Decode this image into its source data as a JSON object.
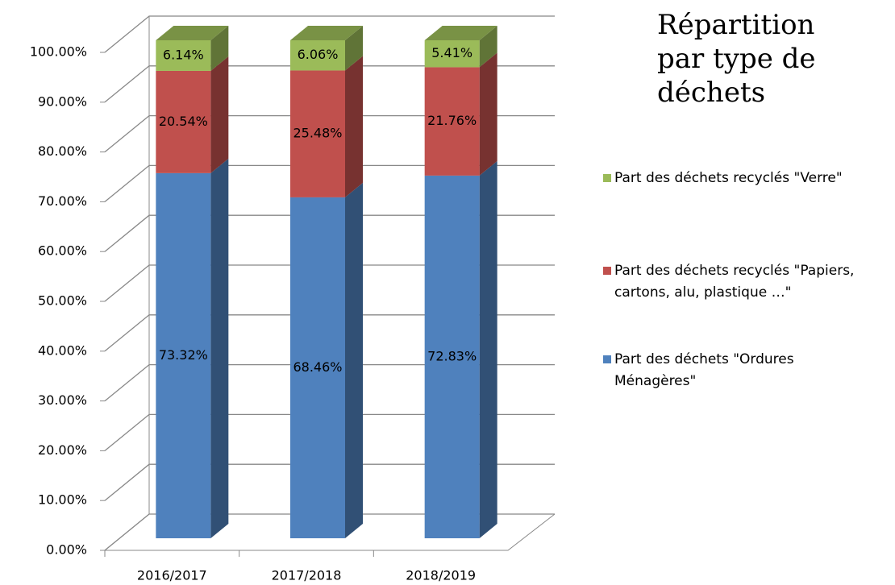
{
  "chart_data": {
    "type": "bar3d_stacked",
    "title": "Répartition par type de déchets",
    "categories": [
      "2016/2017",
      "2017/2018",
      "2018/2019"
    ],
    "series": [
      {
        "name": "Part des déchets \"Ordures Ménagères\"",
        "color": "#4f81bd",
        "values": [
          73.32,
          68.46,
          72.83
        ],
        "value_labels": [
          "73.32%",
          "68.46%",
          "72.83%"
        ]
      },
      {
        "name": "Part des déchets recyclés \"Papiers, cartons, alu, plastique …\"",
        "color": "#c0504d",
        "values": [
          20.54,
          25.48,
          21.76
        ],
        "value_labels": [
          "20.54%",
          "25.48%",
          "21.76%"
        ]
      },
      {
        "name": "Part des déchets recyclés \"Verre\"",
        "color": "#9bbb59",
        "values": [
          6.14,
          6.06,
          5.41
        ],
        "value_labels": [
          "6.14%",
          "6.06%",
          "5.41%"
        ]
      }
    ],
    "ylim": [
      0,
      100
    ],
    "yticks": [
      {
        "value": 0,
        "label": "0.00%"
      },
      {
        "value": 10,
        "label": "10.00%"
      },
      {
        "value": 20,
        "label": "20.00%"
      },
      {
        "value": 30,
        "label": "30.00%"
      },
      {
        "value": 40,
        "label": "40.00%"
      },
      {
        "value": 50,
        "label": "50.00%"
      },
      {
        "value": 60,
        "label": "60.00%"
      },
      {
        "value": 70,
        "label": "70.00%"
      },
      {
        "value": 80,
        "label": "80.00%"
      },
      {
        "value": 90,
        "label": "90.00%"
      },
      {
        "value": 100,
        "label": "100.00%"
      }
    ],
    "grid": true,
    "legend": "right"
  }
}
